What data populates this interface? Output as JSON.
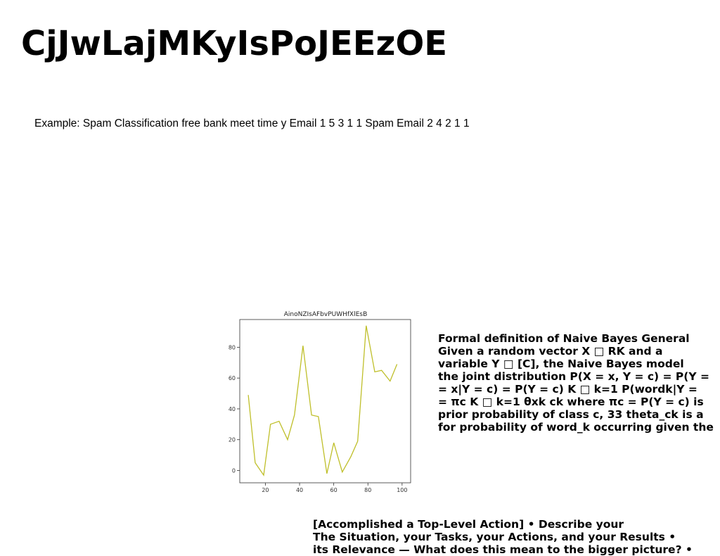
{
  "page": {
    "title": "CjJwLajMKyIsPoJEEzOE",
    "example_text": "Example: Spam Classification free bank meet time y Email 1 5 3 1 1 Spam Email 2 4 2 1 1"
  },
  "definition": {
    "lines": [
      "Formal definition of Naive Bayes General",
      "Given a random vector X □ RK and a",
      "variable Y □ [C], the Naive Bayes model",
      "the joint distribution P(X = x, Y = c) = P(Y =",
      "= x|Y = c) = P(Y = c) K □ k=1 P(wordk|Y =",
      "= πc K □ k=1 θxk ck where πc = P(Y = c) is",
      "prior probability of class c, 33 theta_ck is a",
      "for probability of word_k occurring given the"
    ]
  },
  "star": {
    "lines": [
      "[Accomplished a Top-Level Action] • Describe your",
      "The Situation, your Tasks, your Actions, and your Results •",
      "its Relevance — What does this mean to the bigger picture? •"
    ]
  },
  "chart_data": {
    "type": "line",
    "title": "AinoNZIsAFbvPUWHfXlEsB",
    "xlabel": "",
    "ylabel": "",
    "xlim": [
      5,
      105
    ],
    "ylim": [
      -8,
      98
    ],
    "xticks": [
      20,
      40,
      60,
      80,
      100
    ],
    "yticks": [
      0,
      20,
      40,
      60,
      80
    ],
    "grid": false,
    "line_color": "#bfbf2a",
    "series": [
      {
        "x": [
          10,
          14,
          19,
          23,
          28,
          33,
          37,
          42,
          47,
          51,
          56,
          60,
          65,
          70,
          74,
          79,
          84,
          88,
          93,
          97
        ],
        "y": [
          49,
          5,
          -3,
          30,
          32,
          20,
          36,
          81,
          36,
          35,
          -2,
          18,
          -1,
          9,
          19,
          94,
          64,
          65,
          58,
          69
        ]
      }
    ]
  }
}
